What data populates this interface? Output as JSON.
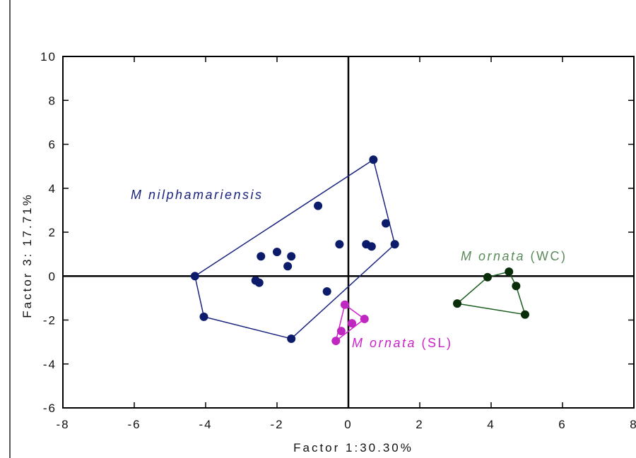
{
  "chart_data": {
    "type": "scatter",
    "title": "",
    "xlabel": "Factor 1:30.30%",
    "ylabel": "Factor 3: 17.71%",
    "xlim": [
      -8,
      8
    ],
    "ylim": [
      -6,
      10
    ],
    "x_ticks": [
      -8,
      -6,
      -4,
      -2,
      0,
      2,
      4,
      6,
      8
    ],
    "y_ticks": [
      -6,
      -4,
      -2,
      0,
      2,
      4,
      6,
      8,
      10
    ],
    "grid": false,
    "zero_lines": true,
    "groups": [
      {
        "label_prefix": "M",
        "label_main": "nilphamariensis",
        "label_suffix": "",
        "color": "#1a237e",
        "marker_color": "#0d1b6b",
        "points": [
          [
            0.7,
            5.3
          ],
          [
            -0.85,
            3.2
          ],
          [
            1.05,
            2.4
          ],
          [
            1.3,
            1.45
          ],
          [
            0.5,
            1.45
          ],
          [
            0.65,
            1.35
          ],
          [
            -0.25,
            1.45
          ],
          [
            -2.0,
            1.1
          ],
          [
            -2.45,
            0.9
          ],
          [
            -1.6,
            0.9
          ],
          [
            -1.7,
            0.45
          ],
          [
            -4.3,
            0.0
          ],
          [
            -2.6,
            -0.2
          ],
          [
            -2.5,
            -0.3
          ],
          [
            -0.6,
            -0.7
          ],
          [
            -4.05,
            -1.85
          ],
          [
            -1.6,
            -2.85
          ]
        ],
        "hull": [
          [
            0.7,
            5.3
          ],
          [
            1.3,
            1.45
          ],
          [
            -1.6,
            -2.85
          ],
          [
            -4.05,
            -1.85
          ],
          [
            -4.3,
            0.0
          ]
        ]
      },
      {
        "label_prefix": "M",
        "label_main": "ornata",
        "label_suffix": "(SL)",
        "color": "#cc22cc",
        "marker_color": "#c026c0",
        "points": [
          [
            -0.1,
            -1.3
          ],
          [
            0.45,
            -1.95
          ],
          [
            0.1,
            -2.15
          ],
          [
            -0.2,
            -2.5
          ],
          [
            -0.35,
            -2.95
          ]
        ],
        "hull": [
          [
            -0.1,
            -1.3
          ],
          [
            0.45,
            -1.95
          ],
          [
            -0.35,
            -2.95
          ]
        ]
      },
      {
        "label_prefix": "M",
        "label_main": "ornata",
        "label_suffix": "(WC)",
        "color": "#5a8a5a",
        "hull_color": "#1b5e20",
        "marker_color": "#0a2e0a",
        "points": [
          [
            4.5,
            0.2
          ],
          [
            3.9,
            -0.05
          ],
          [
            4.7,
            -0.45
          ],
          [
            3.05,
            -1.25
          ],
          [
            4.95,
            -1.75
          ]
        ],
        "hull": [
          [
            4.5,
            0.2
          ],
          [
            4.7,
            -0.45
          ],
          [
            4.95,
            -1.75
          ],
          [
            3.05,
            -1.25
          ],
          [
            3.9,
            -0.05
          ]
        ]
      }
    ]
  }
}
